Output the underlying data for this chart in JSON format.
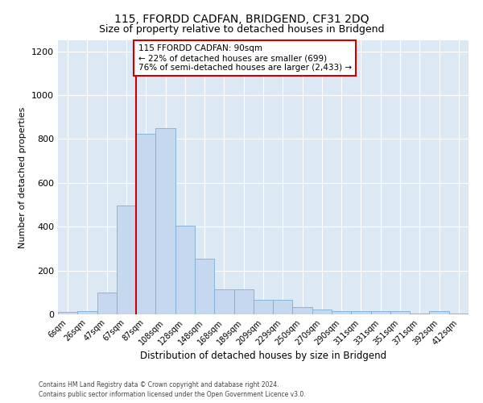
{
  "title": "115, FFORDD CADFAN, BRIDGEND, CF31 2DQ",
  "subtitle": "Size of property relative to detached houses in Bridgend",
  "xlabel": "Distribution of detached houses by size in Bridgend",
  "ylabel": "Number of detached properties",
  "categories": [
    "6sqm",
    "26sqm",
    "47sqm",
    "67sqm",
    "87sqm",
    "108sqm",
    "128sqm",
    "148sqm",
    "168sqm",
    "189sqm",
    "209sqm",
    "229sqm",
    "250sqm",
    "270sqm",
    "290sqm",
    "311sqm",
    "331sqm",
    "351sqm",
    "371sqm",
    "392sqm",
    "412sqm"
  ],
  "values": [
    10,
    13,
    100,
    495,
    825,
    850,
    405,
    252,
    115,
    115,
    68,
    68,
    33,
    22,
    14,
    14,
    14,
    14,
    5,
    14,
    5
  ],
  "bar_color": "#c5d8ef",
  "bar_edge_color": "#7aafd4",
  "highlight_bar_index": 4,
  "highlight_line_color": "#cc0000",
  "annotation_text": "115 FFORDD CADFAN: 90sqm\n← 22% of detached houses are smaller (699)\n76% of semi-detached houses are larger (2,433) →",
  "annotation_box_facecolor": "#ffffff",
  "annotation_box_edgecolor": "#cc0000",
  "ylim": [
    0,
    1250
  ],
  "yticks": [
    0,
    200,
    400,
    600,
    800,
    1000,
    1200
  ],
  "grid_color": "#ffffff",
  "background_color": "#dce9f5",
  "footer_line1": "Contains HM Land Registry data © Crown copyright and database right 2024.",
  "footer_line2": "Contains public sector information licensed under the Open Government Licence v3.0.",
  "title_fontsize": 10,
  "subtitle_fontsize": 9,
  "tick_fontsize": 7,
  "ylabel_fontsize": 8,
  "xlabel_fontsize": 8.5,
  "annotation_fontsize": 7.5,
  "footer_fontsize": 5.5
}
